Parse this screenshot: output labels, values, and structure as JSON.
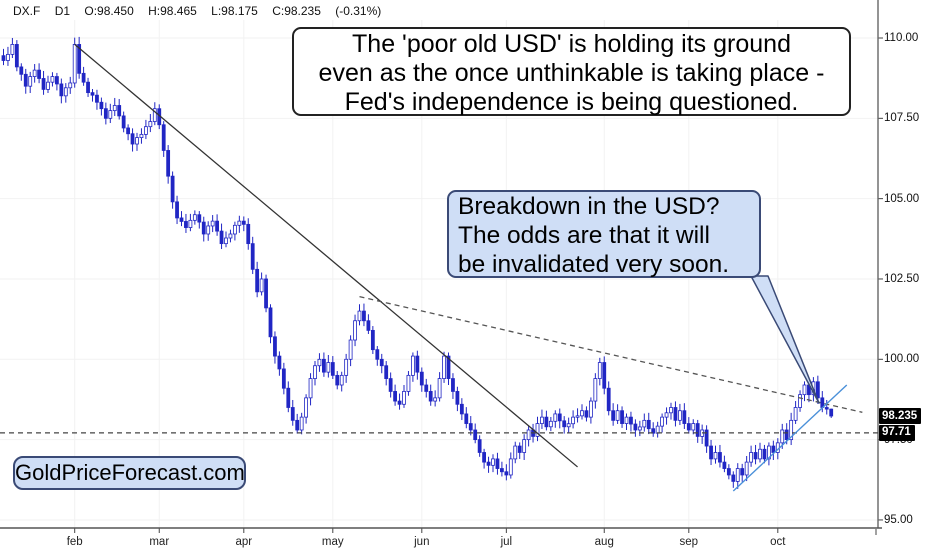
{
  "header": {
    "symbol": "DX.F",
    "timeframe": "D1",
    "open_label": "O:98.450",
    "high_label": "H:98.465",
    "low_label": "L:98.175",
    "close_label": "C:98.235",
    "change_label": "(-0.31%)"
  },
  "annotations": {
    "note1": {
      "lines": [
        "The 'poor old USD' is holding its ground",
        "even as the once unthinkable is taking place -",
        "Fed's independence is being questioned."
      ]
    },
    "note2": {
      "lines": [
        "Breakdown in the USD?",
        "The odds are that it will",
        "be invalidated very soon."
      ]
    },
    "watermark": "GoldPriceForecast.com"
  },
  "price_tags": [
    {
      "label": "98.235",
      "price": 98.235
    },
    {
      "label": "97.71",
      "price": 97.71
    }
  ],
  "colors": {
    "candle_stroke": "#2126c4",
    "candle_down_fill": "#2126c4",
    "candle_up_fill": "#ffffff",
    "grid": "#f2f2f2",
    "axis": "#666666",
    "note_fill": "#cfdef6",
    "note_border": "#3a4a76",
    "support_line": "#4a90d9",
    "tag_bg": "#000000",
    "tag_text": "#ffffff"
  },
  "chart_data": {
    "type": "candlestick",
    "symbol": "DX.F",
    "timeframe": "D1",
    "last_bar": {
      "open": 98.45,
      "high": 98.465,
      "low": 98.175,
      "close": 98.235,
      "change_pct": -0.31
    },
    "y_axis": {
      "min": 94.75,
      "max": 110.55,
      "ticks": [
        {
          "label": "110.00",
          "value": 110.0
        },
        {
          "label": "107.50",
          "value": 107.5
        },
        {
          "label": "105.00",
          "value": 105.0
        },
        {
          "label": "102.50",
          "value": 102.5
        },
        {
          "label": "100.00",
          "value": 100.0
        },
        {
          "label": "97.50",
          "value": 97.5
        },
        {
          "label": "95.00",
          "value": 95.0
        }
      ]
    },
    "x_axis": {
      "months": [
        {
          "label": "feb",
          "day": 16
        },
        {
          "label": "mar",
          "day": 35
        },
        {
          "label": "apr",
          "day": 54
        },
        {
          "label": "may",
          "day": 74
        },
        {
          "label": "jun",
          "day": 94
        },
        {
          "label": "jul",
          "day": 113
        },
        {
          "label": "aug",
          "day": 135
        },
        {
          "label": "sep",
          "day": 154
        },
        {
          "label": "oct",
          "day": 174
        }
      ]
    },
    "price_path": [
      [
        0,
        109.3
      ],
      [
        2,
        109.8
      ],
      [
        3,
        109.1
      ],
      [
        5,
        108.5
      ],
      [
        7,
        109.0
      ],
      [
        9,
        108.4
      ],
      [
        11,
        108.8
      ],
      [
        13,
        108.2
      ],
      [
        15,
        108.6
      ],
      [
        16,
        109.8
      ],
      [
        17,
        108.9
      ],
      [
        19,
        108.3
      ],
      [
        21,
        108.0
      ],
      [
        23,
        107.5
      ],
      [
        25,
        107.9
      ],
      [
        27,
        107.2
      ],
      [
        29,
        106.7
      ],
      [
        31,
        107.0
      ],
      [
        33,
        107.4
      ],
      [
        34,
        107.8
      ],
      [
        35,
        107.3
      ],
      [
        36,
        106.5
      ],
      [
        37,
        105.7
      ],
      [
        38,
        104.9
      ],
      [
        39,
        104.4
      ],
      [
        41,
        104.1
      ],
      [
        43,
        104.5
      ],
      [
        45,
        103.9
      ],
      [
        47,
        104.3
      ],
      [
        49,
        103.6
      ],
      [
        51,
        103.9
      ],
      [
        53,
        104.3
      ],
      [
        54,
        104.2
      ],
      [
        55,
        103.6
      ],
      [
        56,
        102.8
      ],
      [
        57,
        102.1
      ],
      [
        58,
        102.5
      ],
      [
        59,
        101.6
      ],
      [
        60,
        100.7
      ],
      [
        61,
        100.1
      ],
      [
        62,
        99.7
      ],
      [
        63,
        99.1
      ],
      [
        64,
        98.5
      ],
      [
        65,
        98.1
      ],
      [
        66,
        97.8
      ],
      [
        67,
        98.2
      ],
      [
        68,
        98.8
      ],
      [
        69,
        99.4
      ],
      [
        70,
        99.8
      ],
      [
        71,
        100.0
      ],
      [
        72,
        99.6
      ],
      [
        73,
        99.9
      ],
      [
        74,
        99.5
      ],
      [
        75,
        99.2
      ],
      [
        76,
        99.5
      ],
      [
        77,
        100.0
      ],
      [
        78,
        100.6
      ],
      [
        79,
        101.2
      ],
      [
        80,
        101.5
      ],
      [
        81,
        101.2
      ],
      [
        82,
        100.9
      ],
      [
        83,
        100.3
      ],
      [
        84,
        100.0
      ],
      [
        85,
        99.8
      ],
      [
        86,
        99.4
      ],
      [
        87,
        99.0
      ],
      [
        88,
        98.7
      ],
      [
        89,
        98.6
      ],
      [
        90,
        99.0
      ],
      [
        91,
        99.5
      ],
      [
        92,
        100.1
      ],
      [
        93,
        99.6
      ],
      [
        94,
        99.2
      ],
      [
        95,
        99.0
      ],
      [
        96,
        98.7
      ],
      [
        97,
        98.8
      ],
      [
        98,
        99.4
      ],
      [
        99,
        100.1
      ],
      [
        100,
        99.4
      ],
      [
        101,
        99.0
      ],
      [
        102,
        98.6
      ],
      [
        103,
        98.3
      ],
      [
        104,
        98.0
      ],
      [
        105,
        97.8
      ],
      [
        106,
        97.5
      ],
      [
        107,
        97.1
      ],
      [
        108,
        96.8
      ],
      [
        109,
        96.7
      ],
      [
        110,
        96.9
      ],
      [
        111,
        96.6
      ],
      [
        112,
        96.5
      ],
      [
        113,
        96.4
      ],
      [
        114,
        96.9
      ],
      [
        115,
        97.3
      ],
      [
        116,
        97.1
      ],
      [
        117,
        97.5
      ],
      [
        118,
        97.8
      ],
      [
        119,
        97.6
      ],
      [
        120,
        98.0
      ],
      [
        121,
        98.2
      ],
      [
        122,
        97.9
      ],
      [
        124,
        98.3
      ],
      [
        126,
        97.9
      ],
      [
        128,
        98.2
      ],
      [
        130,
        98.4
      ],
      [
        131,
        98.2
      ],
      [
        132,
        98.7
      ],
      [
        133,
        99.4
      ],
      [
        134,
        99.9
      ],
      [
        135,
        99.1
      ],
      [
        136,
        98.4
      ],
      [
        137,
        98.1
      ],
      [
        138,
        98.4
      ],
      [
        139,
        98.0
      ],
      [
        140,
        98.2
      ],
      [
        142,
        97.8
      ],
      [
        144,
        98.1
      ],
      [
        146,
        97.7
      ],
      [
        148,
        98.2
      ],
      [
        150,
        98.5
      ],
      [
        151,
        98.1
      ],
      [
        152,
        98.4
      ],
      [
        153,
        98.0
      ],
      [
        154,
        97.8
      ],
      [
        155,
        98.0
      ],
      [
        156,
        97.6
      ],
      [
        157,
        97.8
      ],
      [
        158,
        97.3
      ],
      [
        159,
        96.9
      ],
      [
        160,
        97.1
      ],
      [
        161,
        96.8
      ],
      [
        162,
        96.6
      ],
      [
        163,
        96.4
      ],
      [
        164,
        96.2
      ],
      [
        165,
        96.6
      ],
      [
        166,
        96.4
      ],
      [
        167,
        96.8
      ],
      [
        168,
        97.1
      ],
      [
        169,
        96.9
      ],
      [
        170,
        97.2
      ],
      [
        171,
        96.9
      ],
      [
        172,
        97.3
      ],
      [
        173,
        97.1
      ],
      [
        174,
        97.4
      ],
      [
        175,
        97.8
      ],
      [
        176,
        97.5
      ],
      [
        177,
        98.1
      ],
      [
        178,
        98.5
      ],
      [
        179,
        98.9
      ],
      [
        180,
        99.2
      ],
      [
        181,
        98.9
      ],
      [
        182,
        99.3
      ],
      [
        183,
        98.8
      ],
      [
        184,
        98.5
      ],
      [
        185,
        98.45
      ],
      [
        186,
        98.235
      ]
    ],
    "trendlines": [
      {
        "name": "primary-downtrend",
        "style": "solid",
        "color": "#333333",
        "width": 1.3,
        "from": {
          "day": 16,
          "price": 109.8
        },
        "to": {
          "day": 129,
          "price": 96.65
        }
      },
      {
        "name": "secondary-downtrend",
        "style": "dashed",
        "color": "#555555",
        "width": 1.3,
        "from": {
          "day": 80,
          "price": 101.95
        },
        "to": {
          "day": 193,
          "price": 98.35
        }
      },
      {
        "name": "rising-support",
        "style": "solid",
        "color": "#4a90d9",
        "width": 1.4,
        "from": {
          "day": 164,
          "price": 95.9
        },
        "to": {
          "day": 189.5,
          "price": 99.2
        }
      }
    ],
    "horizontal_line": {
      "price": 97.71,
      "style": "dashed",
      "color": "#444444"
    },
    "grid": true,
    "legend_position": "none"
  }
}
